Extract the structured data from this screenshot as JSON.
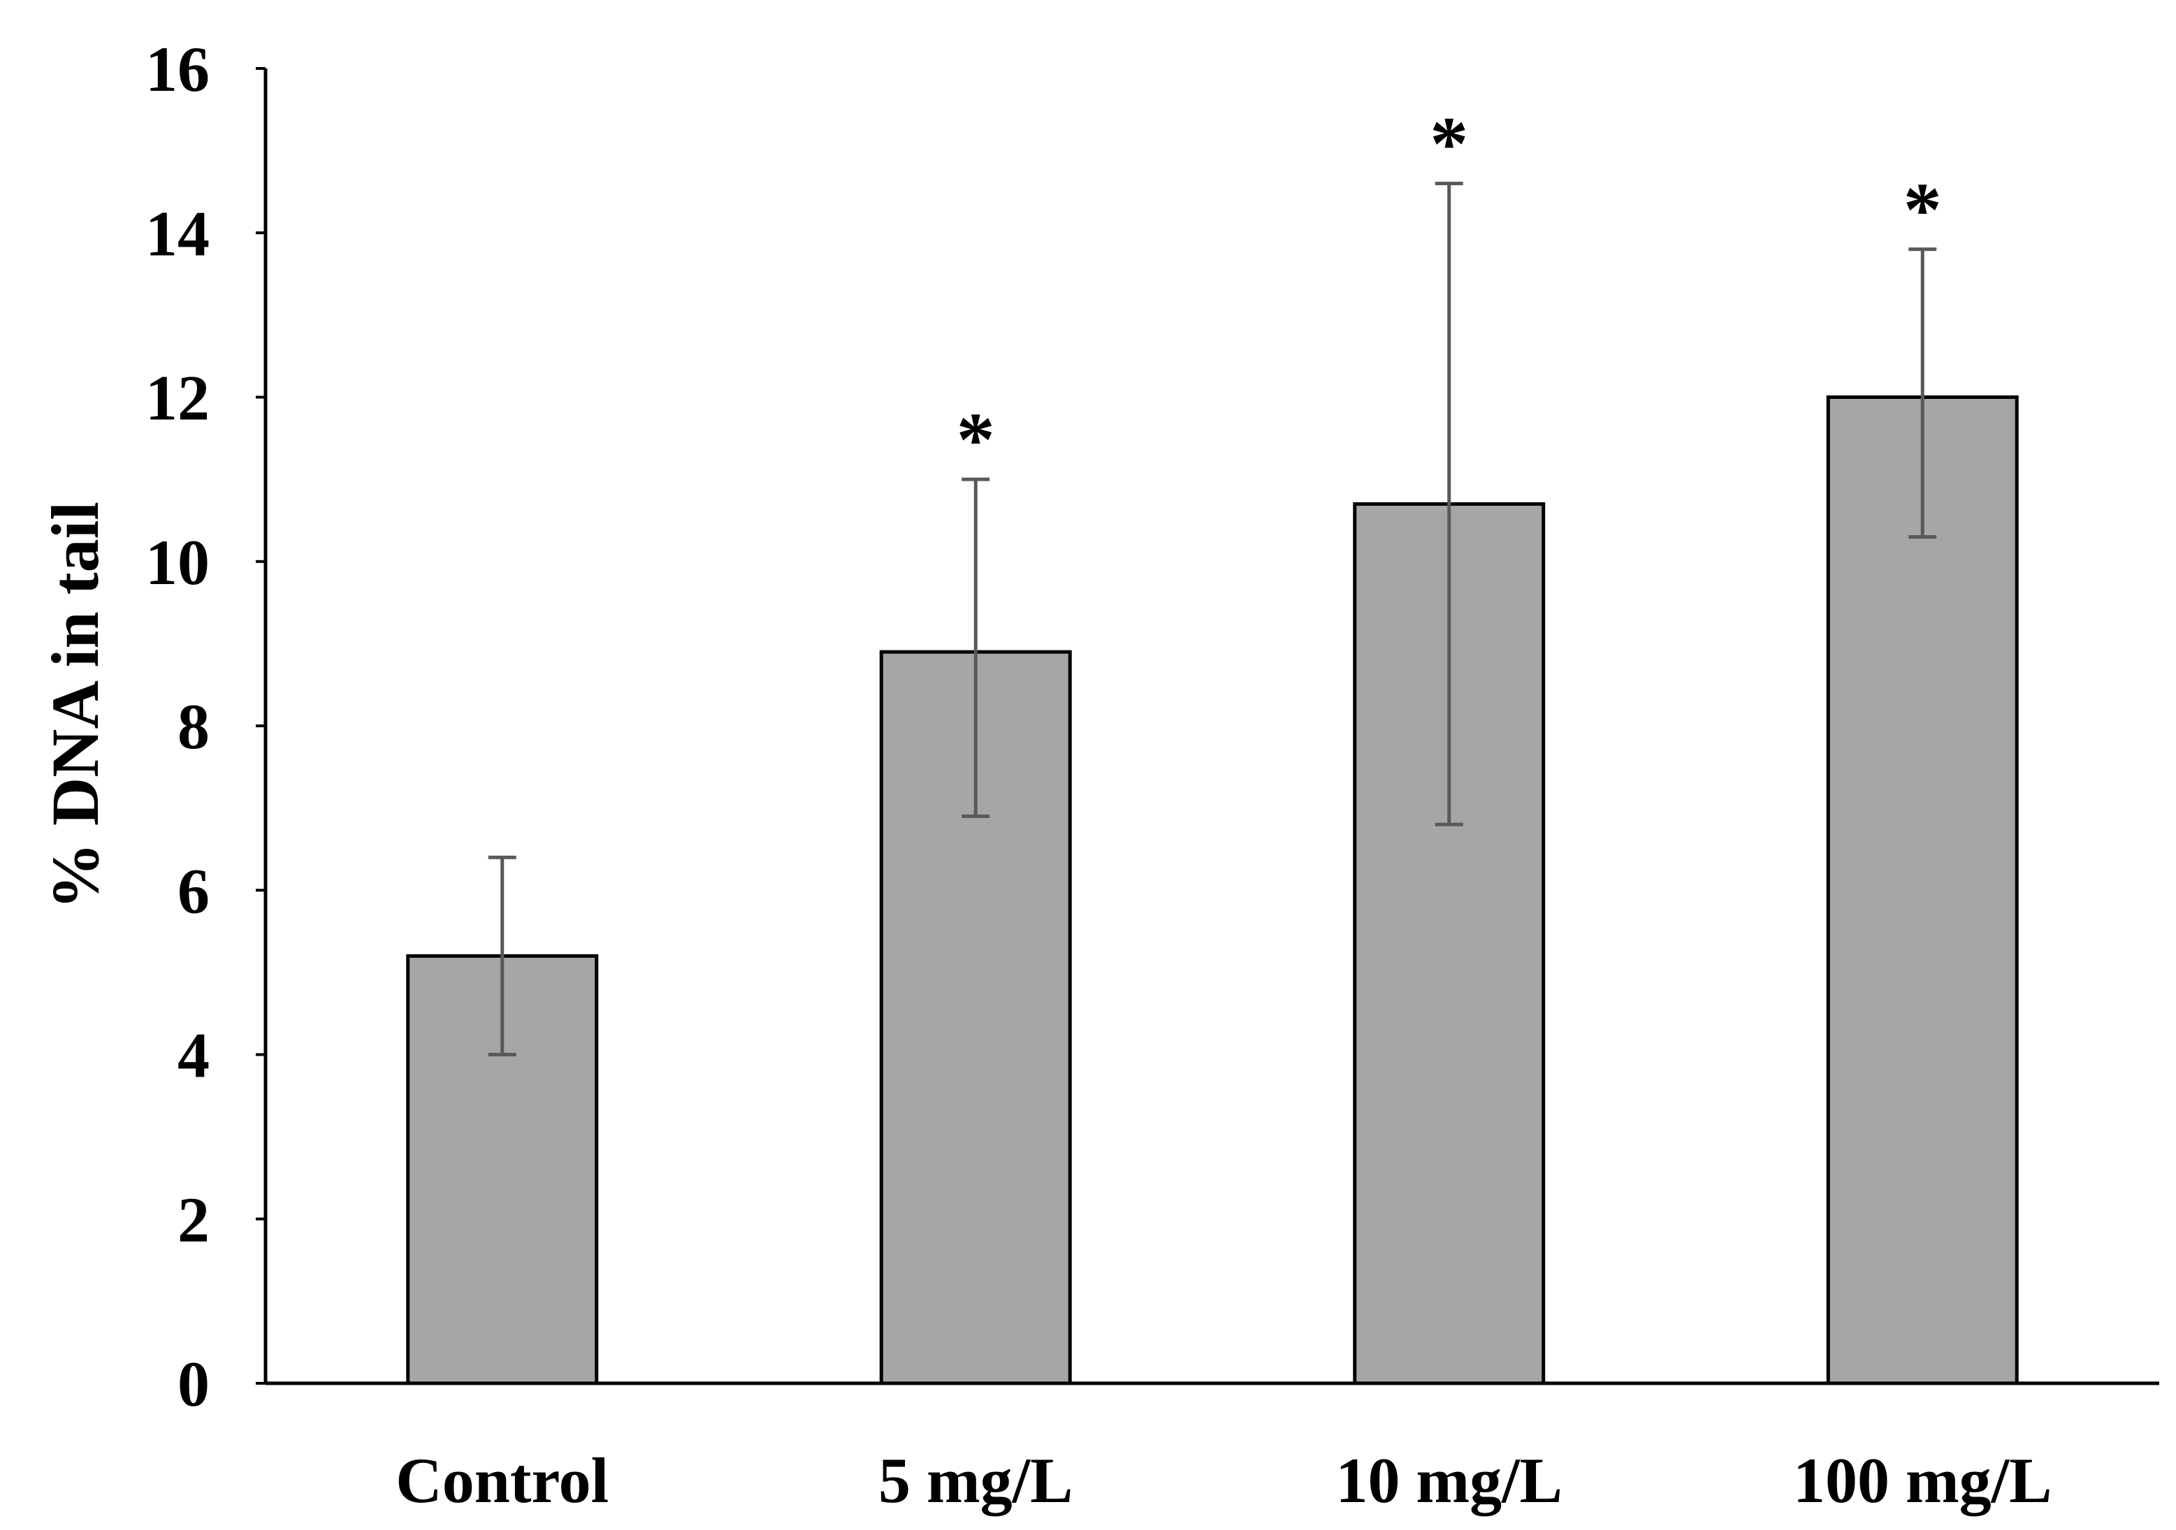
{
  "chart_data": {
    "type": "bar",
    "title": "",
    "xlabel": "",
    "ylabel": "% DNA in tail",
    "ylim": [
      0,
      16
    ],
    "yticks": [
      0,
      2,
      4,
      6,
      8,
      10,
      12,
      14,
      16
    ],
    "categories": [
      "Control",
      "5 mg/L",
      "10 mg/L",
      "100 mg/L"
    ],
    "series": [
      {
        "values": [
          5.2,
          8.9,
          10.7,
          12.0
        ],
        "error_upper": [
          6.4,
          11.0,
          14.6,
          13.8
        ],
        "error_lower": [
          4.0,
          6.9,
          6.8,
          10.3
        ],
        "annotations": [
          "",
          "*",
          "*",
          "*"
        ]
      }
    ],
    "grid": false,
    "colors": {
      "bar_fill": "#a6a6a6",
      "bar_stroke": "#000000",
      "error_bar": "#595959",
      "axis": "#000000"
    }
  }
}
